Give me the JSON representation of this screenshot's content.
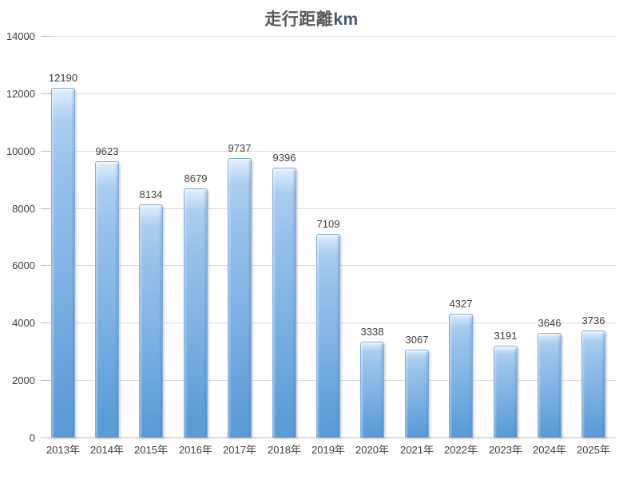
{
  "chart_data": {
    "type": "bar",
    "title": "走行距離km",
    "title_main": "走行距離",
    "title_unit": "km",
    "categories": [
      "2013年",
      "2014年",
      "2015年",
      "2016年",
      "2017年",
      "2018年",
      "2019年",
      "2020年",
      "2021年",
      "2022年",
      "2023年",
      "2024年",
      "2025年"
    ],
    "values": [
      12190,
      9623,
      8134,
      8679,
      9737,
      9396,
      7109,
      3338,
      3067,
      4327,
      3191,
      3646,
      3736
    ],
    "data_labels_visible": true,
    "xlabel": "",
    "ylabel": "",
    "ylim": [
      0,
      14000
    ],
    "ytick_interval": 2000,
    "yticks": [
      0,
      2000,
      4000,
      6000,
      8000,
      10000,
      12000,
      14000
    ],
    "grid": true,
    "legend": "none",
    "colors": {
      "bar_top": "#cfe4f8",
      "bar_mid": "#83b4e5",
      "bar_bottom": "#5b9bd5",
      "bar_border": "#80abd9",
      "gridline": "#dcdcdc",
      "axis_line": "#bfbfbf",
      "tick_label_text": "#404040",
      "value_label_text": "#3f3f3f",
      "title_text": "#595959",
      "title_unit_text": "#44546a",
      "background": "#ffffff"
    }
  }
}
